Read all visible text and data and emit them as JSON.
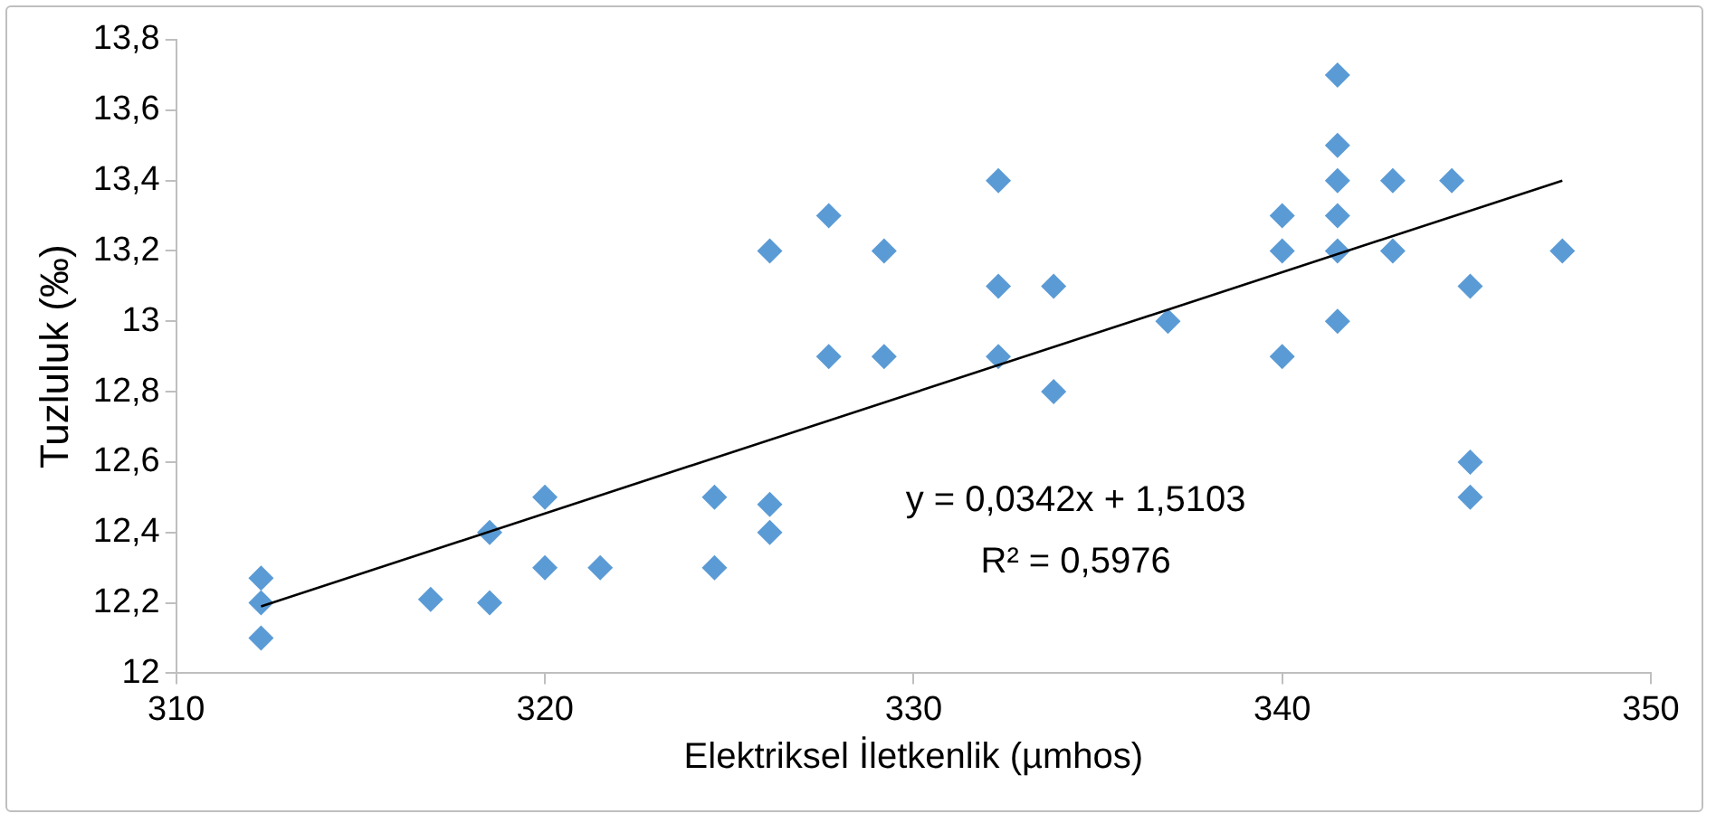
{
  "chart_data": {
    "type": "scatter",
    "xlabel": "Elektriksel İletkenlik (µmhos)",
    "ylabel": "Tuzluluk (‰)",
    "xlim": [
      310,
      350
    ],
    "xticks": [
      310,
      320,
      330,
      340,
      350
    ],
    "ylim": [
      12,
      13.8
    ],
    "yticks": [
      12,
      {
        "value": 12.2,
        "label": "12,2"
      },
      {
        "value": 12.4,
        "label": "12,4"
      },
      {
        "value": 12.6,
        "label": "12,6"
      },
      {
        "value": 12.8,
        "label": "12,8"
      },
      13,
      {
        "value": 13.2,
        "label": "13,2"
      },
      {
        "value": 13.4,
        "label": "13,4"
      },
      {
        "value": 13.6,
        "label": "13,6"
      },
      {
        "value": 13.8,
        "label": "13,8"
      }
    ],
    "grid": false,
    "legend": false,
    "marker": "diamond",
    "series": [
      {
        "type": "scatter",
        "color": "#5b9bd5",
        "x": [
          312.3,
          312.3,
          312.3,
          316.9,
          318.5,
          318.5,
          320.0,
          320.0,
          321.5,
          324.6,
          324.6,
          326.1,
          326.1,
          326.1,
          327.7,
          327.7,
          329.2,
          329.2,
          332.3,
          332.3,
          332.3,
          333.8,
          333.8,
          336.9,
          340.0,
          340.0,
          340.0,
          341.5,
          341.5,
          341.5,
          341.5,
          341.5,
          341.5,
          343.0,
          343.0,
          344.6,
          345.1,
          345.1,
          345.1,
          347.6
        ],
        "values": [
          12.27,
          12.2,
          12.1,
          12.21,
          12.4,
          12.2,
          12.5,
          12.3,
          12.3,
          12.5,
          12.3,
          13.2,
          12.48,
          12.4,
          13.3,
          12.9,
          13.2,
          12.9,
          13.4,
          13.1,
          12.9,
          13.1,
          12.8,
          13.0,
          13.3,
          13.2,
          12.9,
          13.7,
          13.5,
          13.4,
          13.3,
          13.2,
          13.0,
          13.4,
          13.2,
          13.4,
          13.1,
          12.6,
          12.5,
          13.2
        ]
      },
      {
        "type": "line",
        "color": "#000000",
        "marker": "none",
        "x": [
          312.3,
          347.6
        ],
        "values": [
          12.19,
          13.4
        ]
      }
    ],
    "annotations": [
      "y = 0,0342x + 1,5103",
      "R² = 0,5976"
    ]
  }
}
